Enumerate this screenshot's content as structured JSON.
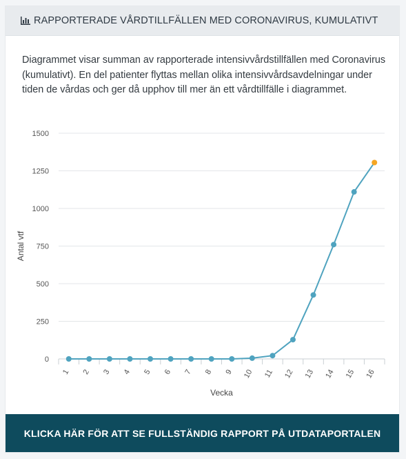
{
  "header": {
    "title": "RAPPORTERADE VÅRDTILLFÄLLEN MED CORONAVIRUS, KUMULATIVT",
    "icon": "bar-chart-icon"
  },
  "description": "Diagrammet visar summan av rapporterade intensivvårdstillfällen med Coronavirus (kumulativt). En del patienter flyttas mellan olika intensivvårdsavdelningar under tiden de vårdas och ger då upphov till mer än ett vårdtillfälle i diagrammet.",
  "cta": {
    "label": "KLICKA HÄR FÖR ATT SE FULLSTÄNDIG RAPPORT PÅ UTDATAPORTALEN"
  },
  "colors": {
    "line": "#4fa3bf",
    "highlight": "#f5a623",
    "grid": "#e3e6e8",
    "cta_bg": "#0e4b5d"
  },
  "chart_data": {
    "type": "line",
    "xlabel": "Vecka",
    "ylabel": "Antal vtf",
    "x": [
      "1",
      "2",
      "3",
      "4",
      "5",
      "6",
      "7",
      "8",
      "9",
      "10",
      "11",
      "12",
      "13",
      "14",
      "15",
      "16"
    ],
    "series": [
      {
        "values": [
          0,
          0,
          0,
          0,
          0,
          0,
          0,
          0,
          0,
          5,
          22,
          128,
          425,
          760,
          1110,
          1305
        ]
      }
    ],
    "ylim": [
      0,
      1500
    ],
    "yticks": [
      0,
      250,
      500,
      750,
      1000,
      1250,
      1500
    ],
    "grid": true,
    "highlight_last_point": true
  }
}
